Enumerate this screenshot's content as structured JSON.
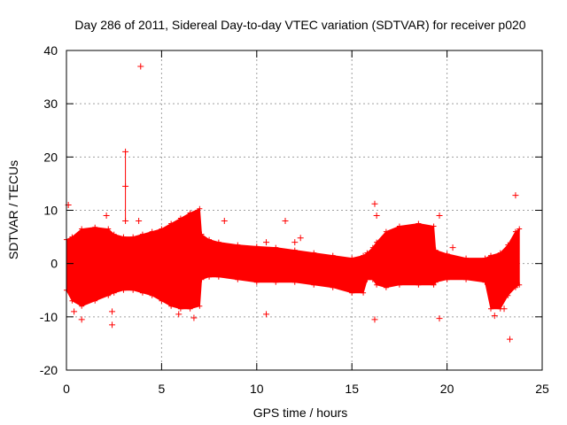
{
  "chart_data": {
    "type": "scatter",
    "title": "Day 286 of 2011, Sidereal Day-to-day VTEC variation (SDTVAR) for receiver p020",
    "xlabel": "GPS time / hours",
    "ylabel": "SDTVAR / TECUs",
    "xlim": [
      0,
      25
    ],
    "ylim": [
      -20,
      40
    ],
    "grid": true,
    "x_ticks": [
      0,
      5,
      10,
      15,
      20,
      25
    ],
    "x_tick_labels": [
      "0",
      "5",
      "10",
      "15",
      "20",
      "25"
    ],
    "y_ticks": [
      -20,
      -10,
      0,
      10,
      20,
      30,
      40
    ],
    "y_tick_labels": [
      "-20",
      "-10",
      "0",
      "10",
      "20",
      "30",
      "40"
    ],
    "marker": "+",
    "color": "#ff0000",
    "envelope": {
      "x": [
        0.0,
        0.3,
        0.8,
        1.5,
        2.2,
        2.5,
        3.0,
        3.5,
        4.0,
        4.5,
        5.0,
        5.5,
        6.0,
        6.5,
        7.0,
        7.1,
        7.5,
        8.0,
        9.0,
        10.0,
        11.0,
        12.0,
        13.0,
        14.0,
        15.0,
        15.6,
        15.8,
        16.1,
        16.3,
        16.8,
        17.5,
        18.5,
        19.3,
        19.4,
        20.0,
        21.0,
        22.0,
        22.3,
        22.8,
        23.2,
        23.6,
        23.8
      ],
      "upper": [
        4.5,
        5.0,
        6.5,
        6.8,
        6.5,
        5.5,
        5.0,
        5.0,
        5.5,
        6.0,
        6.5,
        7.5,
        8.5,
        9.5,
        10.3,
        5.5,
        4.5,
        4.0,
        3.5,
        3.2,
        3.0,
        2.5,
        2.0,
        1.5,
        1.0,
        1.5,
        2.0,
        3.0,
        4.0,
        6.0,
        7.0,
        7.5,
        7.0,
        2.5,
        1.8,
        1.0,
        1.0,
        1.5,
        2.0,
        3.5,
        6.0,
        6.5
      ],
      "lower": [
        -5.0,
        -7.0,
        -8.0,
        -7.0,
        -6.0,
        -5.5,
        -5.0,
        -5.0,
        -5.5,
        -6.0,
        -7.0,
        -8.0,
        -8.5,
        -8.5,
        -8.0,
        -3.0,
        -2.5,
        -2.5,
        -3.0,
        -3.5,
        -3.5,
        -3.5,
        -4.0,
        -4.5,
        -5.5,
        -5.5,
        -3.0,
        -3.0,
        -4.0,
        -4.5,
        -4.0,
        -4.0,
        -4.0,
        -3.5,
        -3.0,
        -3.0,
        -3.5,
        -8.5,
        -8.5,
        -6.0,
        -4.5,
        -4.0
      ]
    },
    "outliers": [
      {
        "x": 0.1,
        "y": 11.0
      },
      {
        "x": 0.4,
        "y": -9.0
      },
      {
        "x": 0.8,
        "y": -10.5
      },
      {
        "x": 2.1,
        "y": 9.0
      },
      {
        "x": 2.4,
        "y": -11.5
      },
      {
        "x": 2.4,
        "y": -9.0
      },
      {
        "x": 3.1,
        "y": 21.0
      },
      {
        "x": 3.1,
        "y": 14.5
      },
      {
        "x": 3.1,
        "y": 8.0
      },
      {
        "x": 3.9,
        "y": 37.0
      },
      {
        "x": 3.8,
        "y": 8.0
      },
      {
        "x": 5.9,
        "y": -9.5
      },
      {
        "x": 6.7,
        "y": -10.2
      },
      {
        "x": 8.3,
        "y": 8.0
      },
      {
        "x": 10.5,
        "y": 4.0
      },
      {
        "x": 10.5,
        "y": -9.5
      },
      {
        "x": 11.5,
        "y": 8.0
      },
      {
        "x": 12.0,
        "y": 4.0
      },
      {
        "x": 12.3,
        "y": 4.8
      },
      {
        "x": 16.2,
        "y": 11.2
      },
      {
        "x": 16.2,
        "y": -10.5
      },
      {
        "x": 16.3,
        "y": 9.0
      },
      {
        "x": 19.6,
        "y": 9.0
      },
      {
        "x": 19.6,
        "y": -10.3
      },
      {
        "x": 20.3,
        "y": 3.0
      },
      {
        "x": 23.3,
        "y": -14.2
      },
      {
        "x": 23.6,
        "y": 12.8
      },
      {
        "x": 22.5,
        "y": -9.8
      },
      {
        "x": 23.0,
        "y": -8.5
      }
    ]
  }
}
